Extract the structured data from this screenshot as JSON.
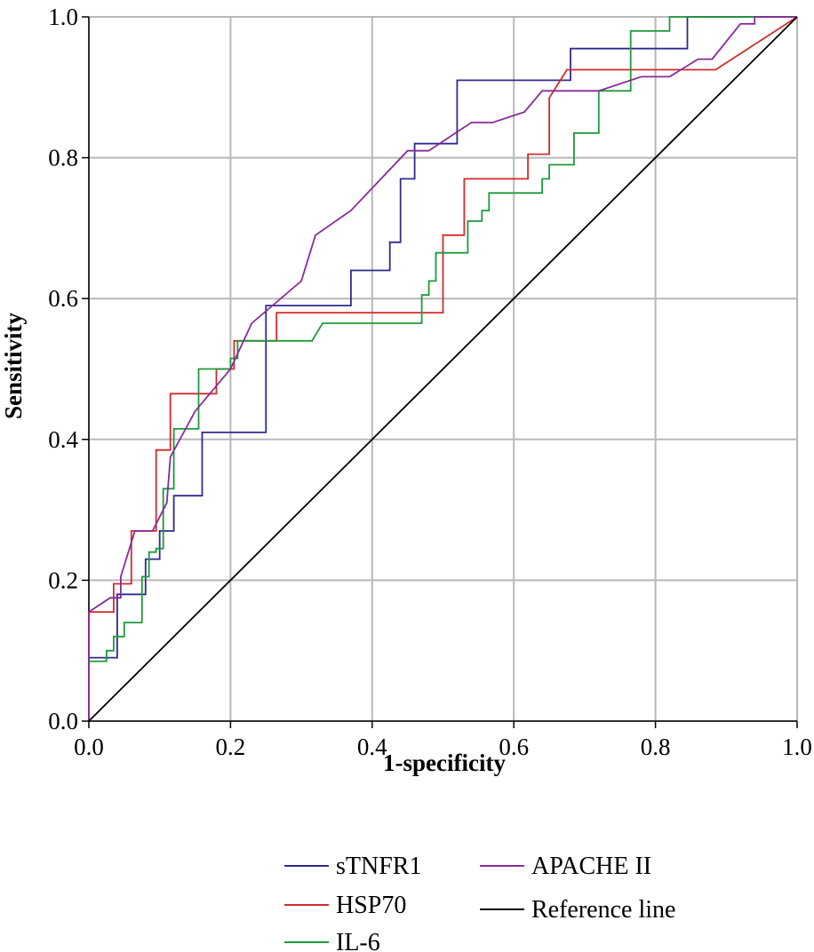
{
  "chart_data": {
    "type": "line",
    "subtype": "ROC curve",
    "xlabel": "1-specificity",
    "ylabel": "Sensitivity",
    "xlim": [
      0,
      1
    ],
    "ylim": [
      0,
      1
    ],
    "x_ticks": [
      "0.0",
      "0.2",
      "0.4",
      "0.6",
      "0.8",
      "1.0"
    ],
    "y_ticks": [
      "0.0",
      "0.2",
      "0.4",
      "0.6",
      "0.8",
      "1.0"
    ],
    "grid": true,
    "legend_position": "bottom",
    "series": [
      {
        "name": "sTNFR1",
        "color": "#2e2b8c",
        "points": [
          [
            0,
            0
          ],
          [
            0,
            0.09
          ],
          [
            0.04,
            0.09
          ],
          [
            0.04,
            0.18
          ],
          [
            0.08,
            0.18
          ],
          [
            0.08,
            0.23
          ],
          [
            0.1,
            0.23
          ],
          [
            0.1,
            0.27
          ],
          [
            0.12,
            0.27
          ],
          [
            0.12,
            0.32
          ],
          [
            0.16,
            0.32
          ],
          [
            0.16,
            0.41
          ],
          [
            0.25,
            0.41
          ],
          [
            0.25,
            0.59
          ],
          [
            0.37,
            0.59
          ],
          [
            0.37,
            0.64
          ],
          [
            0.425,
            0.64
          ],
          [
            0.425,
            0.68
          ],
          [
            0.44,
            0.68
          ],
          [
            0.44,
            0.77
          ],
          [
            0.46,
            0.77
          ],
          [
            0.46,
            0.82
          ],
          [
            0.52,
            0.82
          ],
          [
            0.52,
            0.91
          ],
          [
            0.68,
            0.91
          ],
          [
            0.68,
            0.955
          ],
          [
            0.845,
            0.955
          ],
          [
            0.845,
            1.0
          ],
          [
            1.0,
            1.0
          ]
        ]
      },
      {
        "name": "HSP70",
        "color": "#d42a2a",
        "points": [
          [
            0,
            0
          ],
          [
            0,
            0.155
          ],
          [
            0.035,
            0.155
          ],
          [
            0.035,
            0.195
          ],
          [
            0.06,
            0.195
          ],
          [
            0.06,
            0.27
          ],
          [
            0.095,
            0.27
          ],
          [
            0.095,
            0.385
          ],
          [
            0.115,
            0.385
          ],
          [
            0.115,
            0.465
          ],
          [
            0.18,
            0.465
          ],
          [
            0.18,
            0.5
          ],
          [
            0.205,
            0.5
          ],
          [
            0.205,
            0.54
          ],
          [
            0.265,
            0.54
          ],
          [
            0.265,
            0.58
          ],
          [
            0.5,
            0.58
          ],
          [
            0.5,
            0.69
          ],
          [
            0.53,
            0.69
          ],
          [
            0.53,
            0.77
          ],
          [
            0.62,
            0.77
          ],
          [
            0.62,
            0.805
          ],
          [
            0.65,
            0.805
          ],
          [
            0.65,
            0.885
          ],
          [
            0.675,
            0.925
          ],
          [
            0.885,
            0.925
          ],
          [
            1.0,
            1.0
          ]
        ]
      },
      {
        "name": "IL-6",
        "color": "#1e9a3a",
        "points": [
          [
            0,
            0
          ],
          [
            0,
            0.085
          ],
          [
            0.025,
            0.085
          ],
          [
            0.025,
            0.1
          ],
          [
            0.035,
            0.1
          ],
          [
            0.035,
            0.12
          ],
          [
            0.05,
            0.12
          ],
          [
            0.05,
            0.14
          ],
          [
            0.075,
            0.14
          ],
          [
            0.075,
            0.205
          ],
          [
            0.085,
            0.205
          ],
          [
            0.085,
            0.24
          ],
          [
            0.095,
            0.24
          ],
          [
            0.095,
            0.245
          ],
          [
            0.105,
            0.245
          ],
          [
            0.105,
            0.33
          ],
          [
            0.12,
            0.33
          ],
          [
            0.12,
            0.415
          ],
          [
            0.155,
            0.415
          ],
          [
            0.155,
            0.5
          ],
          [
            0.2,
            0.5
          ],
          [
            0.2,
            0.515
          ],
          [
            0.21,
            0.515
          ],
          [
            0.21,
            0.54
          ],
          [
            0.315,
            0.54
          ],
          [
            0.33,
            0.565
          ],
          [
            0.47,
            0.565
          ],
          [
            0.47,
            0.605
          ],
          [
            0.48,
            0.605
          ],
          [
            0.48,
            0.625
          ],
          [
            0.49,
            0.625
          ],
          [
            0.49,
            0.665
          ],
          [
            0.535,
            0.665
          ],
          [
            0.535,
            0.71
          ],
          [
            0.555,
            0.71
          ],
          [
            0.555,
            0.725
          ],
          [
            0.565,
            0.725
          ],
          [
            0.565,
            0.75
          ],
          [
            0.64,
            0.75
          ],
          [
            0.64,
            0.77
          ],
          [
            0.65,
            0.77
          ],
          [
            0.65,
            0.79
          ],
          [
            0.685,
            0.79
          ],
          [
            0.685,
            0.835
          ],
          [
            0.72,
            0.835
          ],
          [
            0.72,
            0.895
          ],
          [
            0.765,
            0.895
          ],
          [
            0.765,
            0.98
          ],
          [
            0.82,
            0.98
          ],
          [
            0.82,
            1.0
          ],
          [
            1.0,
            1.0
          ]
        ]
      },
      {
        "name": "APACHE II",
        "color": "#8a2a9a",
        "points": [
          [
            0,
            0
          ],
          [
            0,
            0.155
          ],
          [
            0.03,
            0.175
          ],
          [
            0.045,
            0.175
          ],
          [
            0.045,
            0.205
          ],
          [
            0.065,
            0.27
          ],
          [
            0.09,
            0.27
          ],
          [
            0.11,
            0.31
          ],
          [
            0.115,
            0.375
          ],
          [
            0.15,
            0.44
          ],
          [
            0.2,
            0.5
          ],
          [
            0.23,
            0.565
          ],
          [
            0.3,
            0.625
          ],
          [
            0.32,
            0.69
          ],
          [
            0.37,
            0.725
          ],
          [
            0.45,
            0.81
          ],
          [
            0.48,
            0.81
          ],
          [
            0.54,
            0.85
          ],
          [
            0.57,
            0.85
          ],
          [
            0.615,
            0.865
          ],
          [
            0.64,
            0.895
          ],
          [
            0.72,
            0.895
          ],
          [
            0.78,
            0.915
          ],
          [
            0.82,
            0.915
          ],
          [
            0.86,
            0.94
          ],
          [
            0.88,
            0.94
          ],
          [
            0.92,
            0.99
          ],
          [
            0.94,
            0.99
          ],
          [
            0.94,
            1.0
          ],
          [
            1.0,
            1.0
          ]
        ]
      },
      {
        "name": "Reference line",
        "color": "#000000",
        "points": [
          [
            0,
            0
          ],
          [
            1,
            1
          ]
        ]
      }
    ]
  }
}
